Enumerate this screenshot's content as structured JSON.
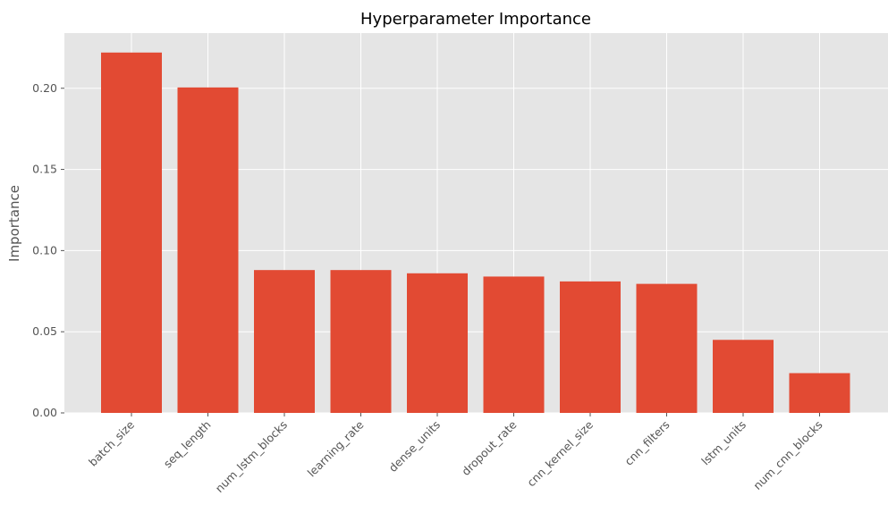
{
  "chart_data": {
    "type": "bar",
    "title": "Hyperparameter Importance",
    "xlabel": "",
    "ylabel": "Importance",
    "categories": [
      "batch_size",
      "seq_length",
      "num_lstm_blocks",
      "learning_rate",
      "dense_units",
      "dropout_rate",
      "cnn_kernel_size",
      "cnn_filters",
      "lstm_units",
      "num_cnn_blocks"
    ],
    "values": [
      0.222,
      0.2005,
      0.088,
      0.088,
      0.086,
      0.084,
      0.081,
      0.0795,
      0.045,
      0.0245
    ],
    "ylim": [
      0,
      0.234
    ],
    "yticks": [
      "0.00",
      "0.05",
      "0.10",
      "0.15",
      "0.20"
    ],
    "grid": true,
    "colors": {
      "bar": "#E24A33",
      "plot_background": "#E5E5E5",
      "grid": "#FFFFFF"
    }
  }
}
